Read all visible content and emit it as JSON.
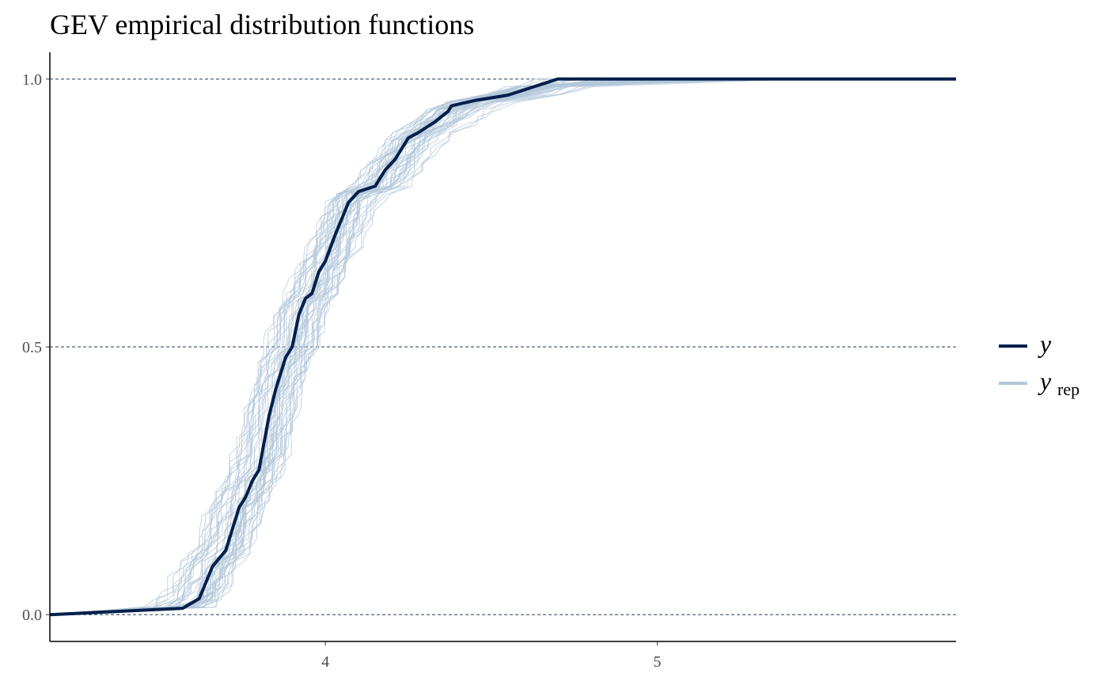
{
  "chart_data": {
    "type": "line",
    "title": "GEV empirical distribution functions",
    "xlabel": "",
    "ylabel": "",
    "xlim": [
      3.17,
      5.9
    ],
    "ylim": [
      -0.05,
      1.05
    ],
    "x_ticks": [
      4,
      5
    ],
    "x_tick_labels": [
      "4",
      "5"
    ],
    "y_ticks": [
      0,
      0.5,
      1
    ],
    "y_tick_labels": [
      "0.0",
      "0.5",
      "1.0"
    ],
    "grid": "horizontal dashed at y ticks",
    "legend": {
      "placement": "right",
      "entries": [
        {
          "key": "y",
          "label_main": "y",
          "label_sub": "",
          "color": "#011f4b"
        },
        {
          "key": "yrep",
          "label_main": "y",
          "label_sub": "rep",
          "color": "#b3c7d9"
        }
      ]
    },
    "colors": {
      "y": "#011f4b",
      "yrep": "#b3c7d9",
      "grid": "#1f3a5a",
      "axis": "#000000"
    },
    "series": [
      {
        "key": "y",
        "x": [
          3.17,
          3.57,
          3.62,
          3.64,
          3.66,
          3.7,
          3.72,
          3.74,
          3.76,
          3.78,
          3.8,
          3.83,
          3.85,
          3.87,
          3.88,
          3.9,
          3.92,
          3.94,
          3.96,
          3.98,
          4.0,
          4.03,
          4.05,
          4.07,
          4.1,
          4.15,
          4.18,
          4.21,
          4.25,
          4.28,
          4.33,
          4.37,
          4.38,
          4.45,
          4.55,
          4.7,
          5.0,
          5.5,
          5.9
        ],
        "y": [
          0.0,
          0.012,
          0.03,
          0.06,
          0.09,
          0.12,
          0.16,
          0.2,
          0.22,
          0.25,
          0.27,
          0.37,
          0.42,
          0.46,
          0.48,
          0.5,
          0.56,
          0.59,
          0.6,
          0.64,
          0.66,
          0.71,
          0.74,
          0.77,
          0.79,
          0.8,
          0.83,
          0.85,
          0.89,
          0.9,
          0.92,
          0.94,
          0.95,
          0.96,
          0.97,
          1.0,
          1.0,
          1.0,
          1.0
        ]
      }
    ],
    "replicates": {
      "key": "yrep",
      "count": 50,
      "x_range": [
        3.17,
        5.6
      ]
    }
  }
}
